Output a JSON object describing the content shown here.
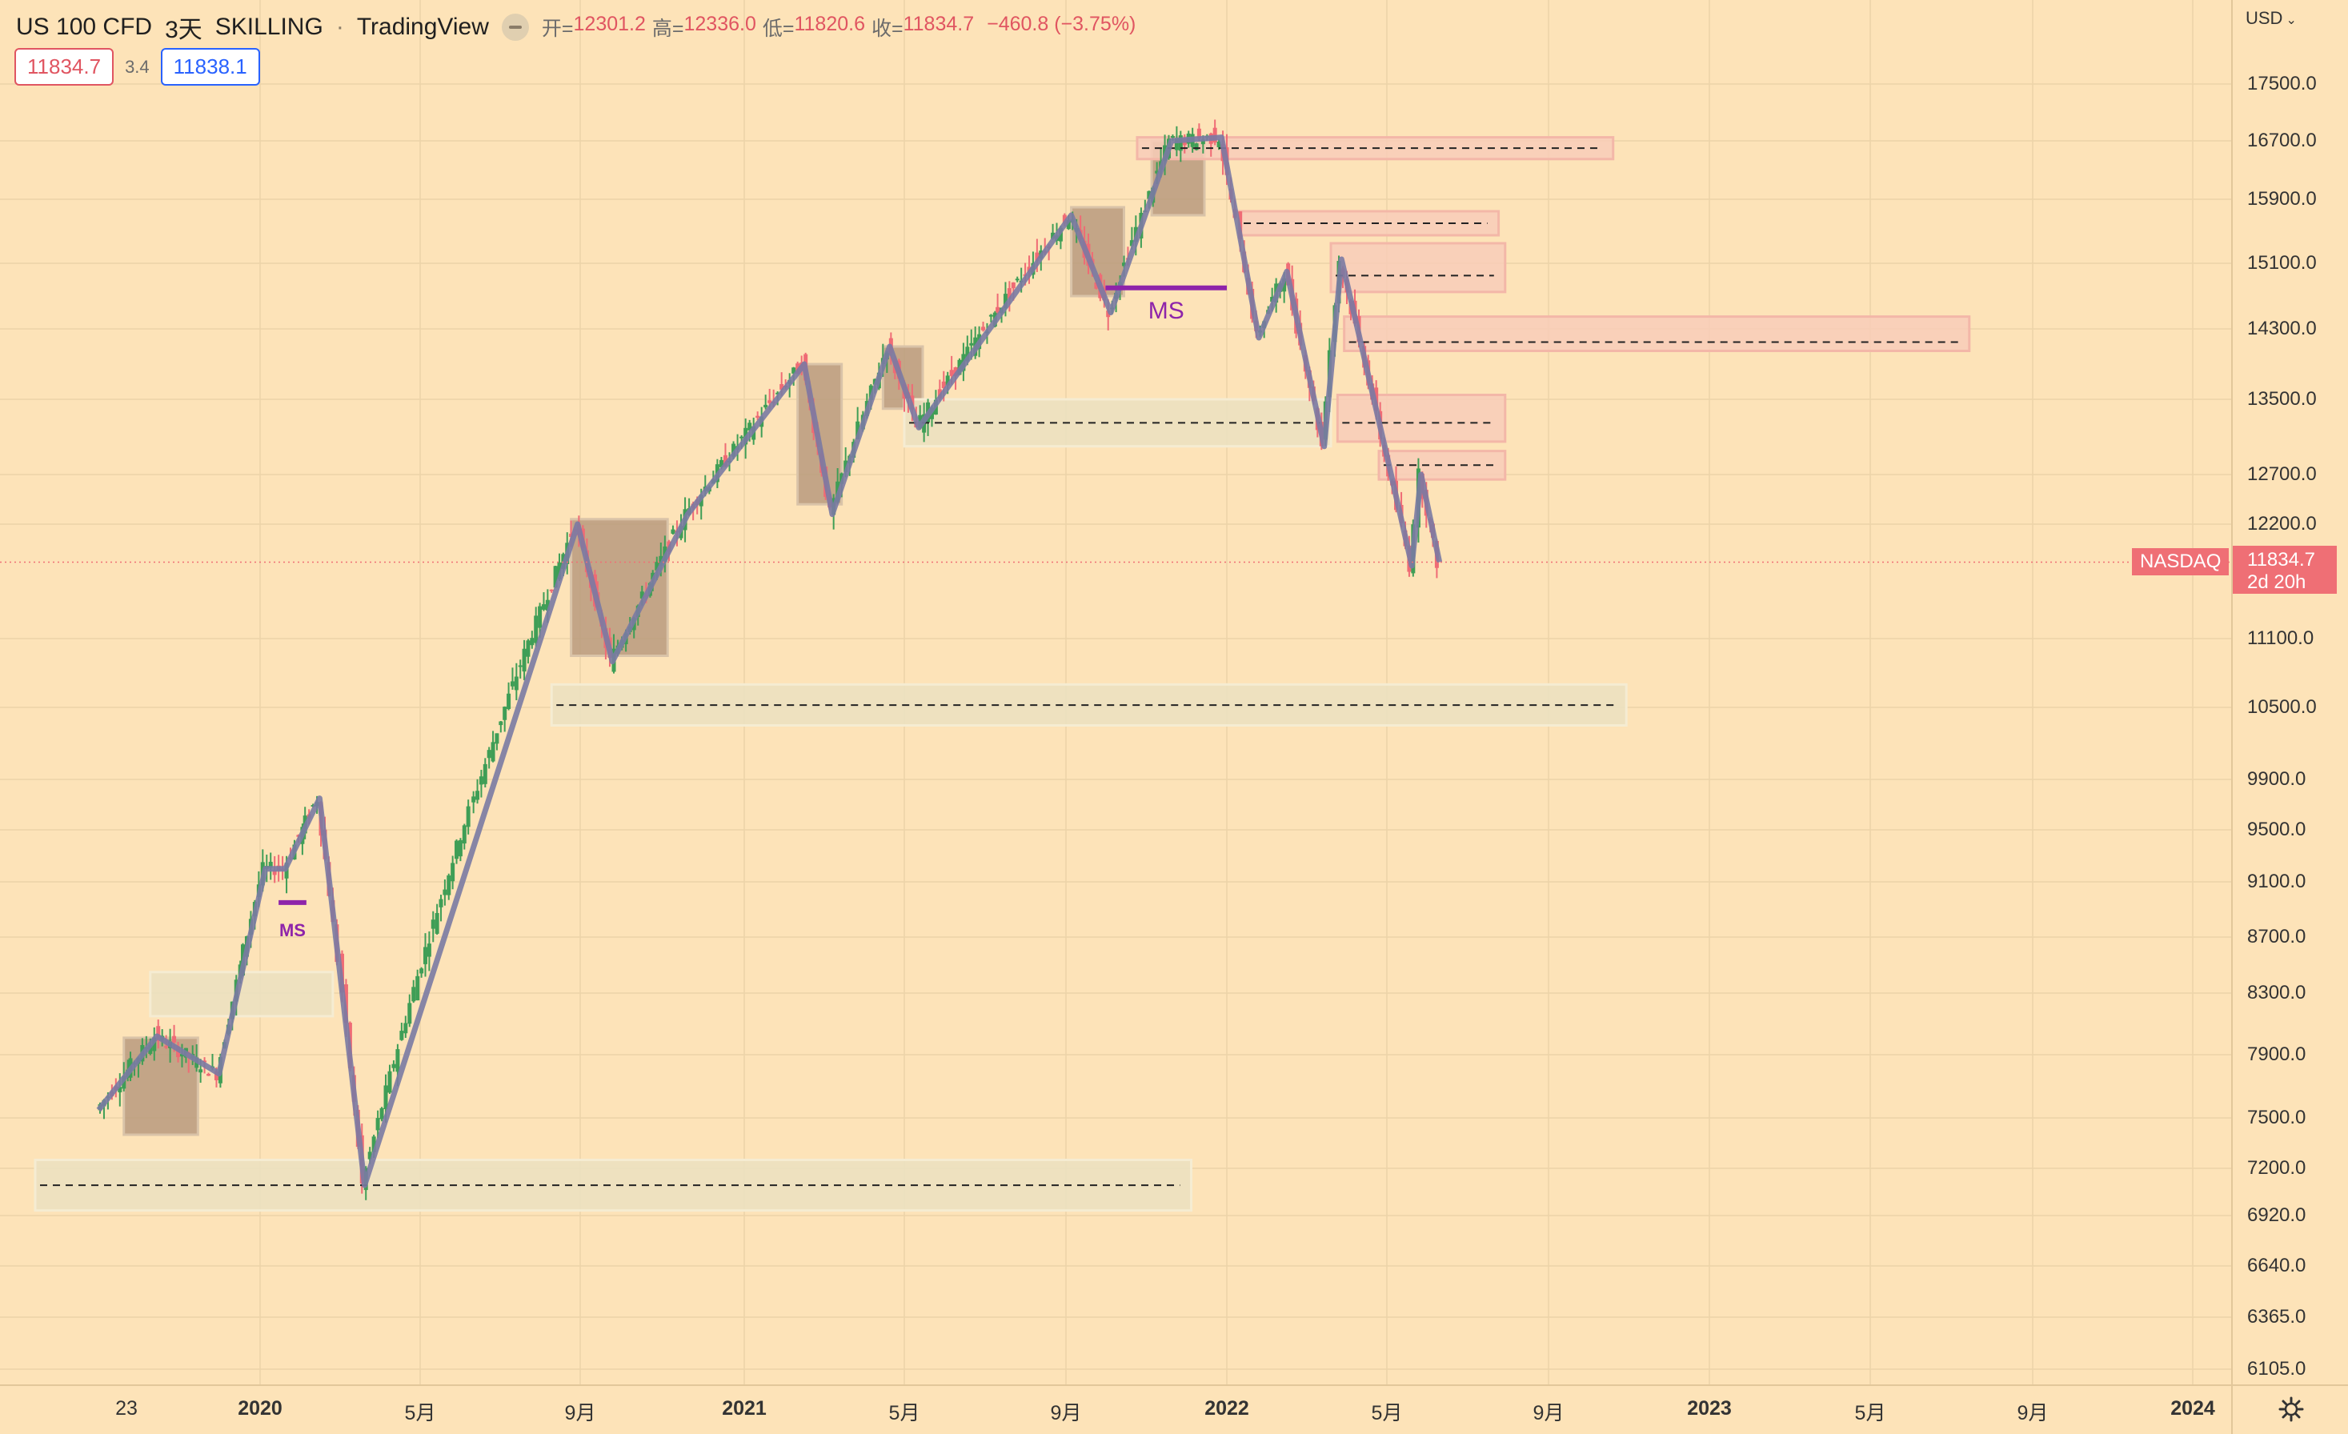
{
  "header": {
    "symbol": "US 100 CFD",
    "interval": "3天",
    "broker": "SKILLING",
    "platform": "TradingView",
    "ohlc": {
      "open_label": "开=",
      "open": "12301.2",
      "high_label": "高=",
      "high": "12336.0",
      "low_label": "低=",
      "low": "11820.6",
      "close_label": "收=",
      "close": "11834.7",
      "change": "−460.8 (−3.75%)"
    },
    "sell_price": "11834.7",
    "spread": "3.4",
    "buy_price": "11838.1"
  },
  "axis": {
    "currency": "USD",
    "price_ticks": [
      "17500.0",
      "16700.0",
      "15900.0",
      "15100.0",
      "14300.0",
      "13500.0",
      "12700.0",
      "12200.0",
      "11100.0",
      "10500.0",
      "9900.0",
      "9500.0",
      "9100.0",
      "8700.0",
      "8300.0",
      "7900.0",
      "7500.0",
      "7200.0",
      "6920.0",
      "6640.0",
      "6365.0",
      "6105.0"
    ],
    "time_ticks": [
      {
        "label": "23",
        "bold": false
      },
      {
        "label": "2020",
        "bold": true
      },
      {
        "label": "5月",
        "bold": false
      },
      {
        "label": "9月",
        "bold": false
      },
      {
        "label": "2021",
        "bold": true
      },
      {
        "label": "5月",
        "bold": false
      },
      {
        "label": "9月",
        "bold": false
      },
      {
        "label": "2022",
        "bold": true
      },
      {
        "label": "5月",
        "bold": false
      },
      {
        "label": "9月",
        "bold": false
      },
      {
        "label": "2023",
        "bold": true
      },
      {
        "label": "5月",
        "bold": false
      },
      {
        "label": "9月",
        "bold": false
      },
      {
        "label": "2024",
        "bold": true
      }
    ],
    "last_price": "11834.7",
    "countdown": "2d 20h",
    "last_price_source": "NASDAQ"
  },
  "annotations": {
    "ms_large": "MS",
    "ms_small": "MS"
  },
  "chart_data": {
    "type": "candlestick",
    "title": "US 100 CFD",
    "interval": "3天",
    "last_close": 11834.7,
    "ylim": [
      6000,
      17900
    ],
    "swing_points": [
      {
        "date": "2019-09-01",
        "price": 7550
      },
      {
        "date": "2019-10-15",
        "price": 8020
      },
      {
        "date": "2019-12-01",
        "price": 7780
      },
      {
        "date": "2020-01-05",
        "price": 9200
      },
      {
        "date": "2020-01-20",
        "price": 9200
      },
      {
        "date": "2020-02-15",
        "price": 9750
      },
      {
        "date": "2020-03-20",
        "price": 7100
      },
      {
        "date": "2020-08-30",
        "price": 12200
      },
      {
        "date": "2020-09-25",
        "price": 10900
      },
      {
        "date": "2020-11-20",
        "price": 12300
      },
      {
        "date": "2021-02-15",
        "price": 13900
      },
      {
        "date": "2021-03-08",
        "price": 12300
      },
      {
        "date": "2021-04-20",
        "price": 14100
      },
      {
        "date": "2021-05-12",
        "price": 13200
      },
      {
        "date": "2021-09-05",
        "price": 15700
      },
      {
        "date": "2021-10-05",
        "price": 14500
      },
      {
        "date": "2021-11-20",
        "price": 16700
      },
      {
        "date": "2021-12-28",
        "price": 16750
      },
      {
        "date": "2022-01-25",
        "price": 14200
      },
      {
        "date": "2022-02-15",
        "price": 15000
      },
      {
        "date": "2022-03-15",
        "price": 13000
      },
      {
        "date": "2022-03-28",
        "price": 15150
      },
      {
        "date": "2022-05-01",
        "price": 12900
      },
      {
        "date": "2022-05-20",
        "price": 11800
      },
      {
        "date": "2022-05-27",
        "price": 12700
      },
      {
        "date": "2022-06-10",
        "price": 11834.7
      }
    ],
    "zones": [
      {
        "kind": "consolidation",
        "from": "2019-09-20",
        "to": "2019-11-15",
        "low": 7400,
        "high": 8010
      },
      {
        "kind": "demand",
        "from": "2019-10-10",
        "to": "2020-02-25",
        "low": 8150,
        "high": 8450
      },
      {
        "kind": "demand",
        "from": "2019-07-15",
        "to": "2021-12-05",
        "low": 6950,
        "high": 7250,
        "level": 7100
      },
      {
        "kind": "consolidation",
        "from": "2020-08-25",
        "to": "2020-11-05",
        "low": 10950,
        "high": 12250
      },
      {
        "kind": "demand",
        "from": "2020-08-10",
        "to": "2022-10-30",
        "low": 10350,
        "high": 10700,
        "level": 10520
      },
      {
        "kind": "consolidation",
        "from": "2021-02-10",
        "to": "2021-03-15",
        "low": 12400,
        "high": 13900
      },
      {
        "kind": "consolidation",
        "from": "2021-04-15",
        "to": "2021-05-15",
        "low": 13400,
        "high": 14100
      },
      {
        "kind": "demand",
        "from": "2021-05-01",
        "to": "2022-03-20",
        "low": 13000,
        "high": 13500,
        "level": 13250
      },
      {
        "kind": "consolidation",
        "from": "2021-09-05",
        "to": "2021-10-15",
        "low": 14700,
        "high": 15800
      },
      {
        "kind": "consolidation",
        "from": "2021-11-05",
        "to": "2021-12-15",
        "low": 15700,
        "high": 16700
      },
      {
        "kind": "supply",
        "from": "2021-10-25",
        "to": "2022-10-20",
        "low": 16450,
        "high": 16750,
        "level": 16600
      },
      {
        "kind": "supply",
        "from": "2022-01-10",
        "to": "2022-07-25",
        "low": 15450,
        "high": 15750,
        "level": 15600
      },
      {
        "kind": "supply",
        "from": "2022-03-20",
        "to": "2022-07-30",
        "low": 14750,
        "high": 15350,
        "level": 14950
      },
      {
        "kind": "supply",
        "from": "2022-03-30",
        "to": "2023-07-15",
        "low": 14050,
        "high": 14450,
        "level": 14150
      },
      {
        "kind": "supply",
        "from": "2022-03-25",
        "to": "2022-07-30",
        "low": 13050,
        "high": 13550,
        "level": 13250
      },
      {
        "kind": "supply",
        "from": "2022-04-25",
        "to": "2022-07-30",
        "low": 12650,
        "high": 12950,
        "level": 12800
      }
    ],
    "market_structure_breaks": [
      {
        "label": "MS",
        "from": "2021-10-01",
        "to": "2022-01-01",
        "price": 14800
      },
      {
        "label": "MS",
        "from": "2020-01-15",
        "to": "2020-02-05",
        "price": 8950
      }
    ]
  }
}
